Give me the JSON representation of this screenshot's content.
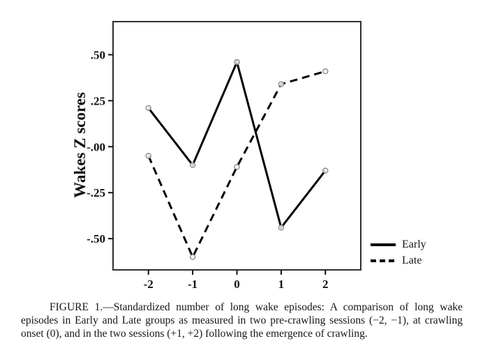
{
  "figure": {
    "caption": "FIGURE 1.—Standardized number of long wake episodes: A comparison of long wake episodes in Early and Late groups as measured in two pre-crawling sessions (−2, −1), at crawling onset (0), and in the two sessions (+1, +2) following the emergence of crawling."
  },
  "chart_data": {
    "type": "line",
    "title": "",
    "xlabel": "",
    "ylabel": "Wakes Z scores",
    "x": [
      -2,
      -1,
      0,
      1,
      2
    ],
    "x_tick_labels": [
      "-2",
      "-1",
      "0",
      "1",
      "2"
    ],
    "y_ticks": [
      0.5,
      0.25,
      0,
      -0.25,
      -0.5
    ],
    "y_tick_labels": [
      ".50",
      ".25",
      "-.00",
      "-.25",
      "-.50"
    ],
    "xlim": [
      -2.8,
      2.8
    ],
    "ylim": [
      -0.67,
      0.68
    ],
    "grid": false,
    "marker": "open-circle",
    "legend_position": "outside-right-bottom",
    "colors": {
      "line": "#000000",
      "frame": "#2f2f2f",
      "marker_ring": "#8a8a8a",
      "marker_fill": "#ffffff"
    },
    "series": [
      {
        "name": "Early",
        "style": "solid",
        "color": "#000000",
        "values": [
          0.21,
          -0.1,
          0.46,
          -0.44,
          -0.13
        ]
      },
      {
        "name": "Late",
        "style": "dashed",
        "color": "#000000",
        "values": [
          -0.05,
          -0.6,
          -0.11,
          0.34,
          0.41
        ]
      }
    ]
  }
}
